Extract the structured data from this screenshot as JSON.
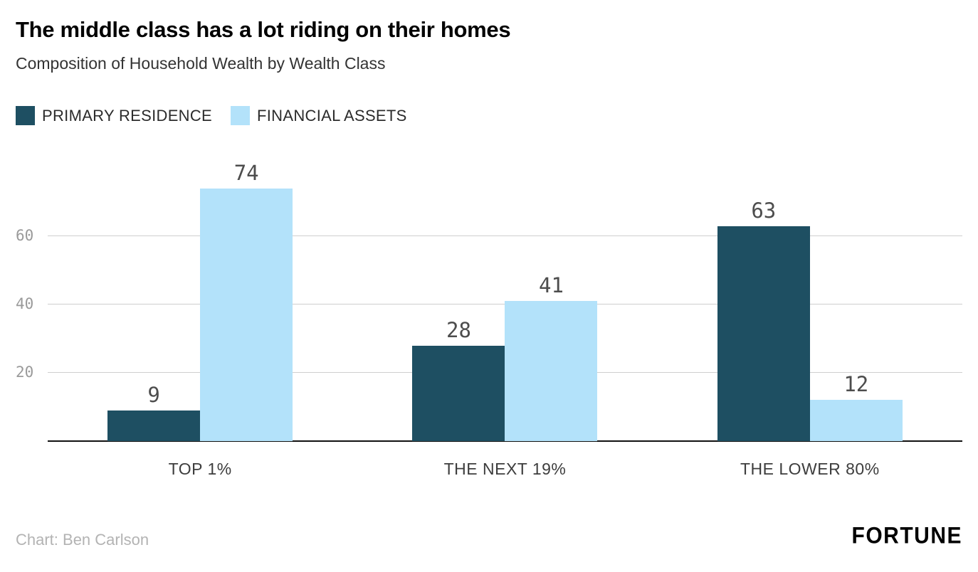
{
  "header": {
    "title": "The middle class has a lot riding on their homes",
    "subtitle": "Composition of Household Wealth by Wealth Class"
  },
  "chart_data": {
    "type": "bar",
    "title": "The middle class has a lot riding on their homes",
    "subtitle": "Composition of Household Wealth by Wealth Class",
    "categories": [
      "TOP 1%",
      "THE NEXT 19%",
      "THE LOWER 80%"
    ],
    "series": [
      {
        "name": "PRIMARY RESIDENCE",
        "color": "#1e4f62",
        "values": [
          9,
          28,
          63
        ]
      },
      {
        "name": "FINANCIAL ASSETS",
        "color": "#b3e2fa",
        "values": [
          74,
          41,
          12
        ]
      }
    ],
    "yticks": [
      20,
      40,
      60
    ],
    "ylim": [
      0,
      74
    ],
    "grid": "horizontal",
    "legend_position": "top-left",
    "value_labels": true,
    "xlabel": "",
    "ylabel": ""
  },
  "footer": {
    "credit": "Chart: Ben Carlson",
    "brand": "FORTUNE"
  }
}
